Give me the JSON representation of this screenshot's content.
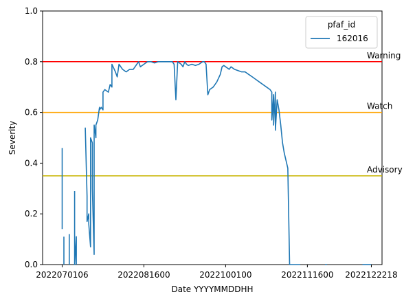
{
  "chart_data": {
    "type": "line",
    "title": "",
    "xlabel": "Date YYYYMMDDHH",
    "ylabel": "Severity",
    "xlim": [
      "2022-06-20",
      "2022-12-28"
    ],
    "ylim": [
      0,
      1.0
    ],
    "x_ticks": [
      {
        "label": "2022070106",
        "date": "2022-07-01"
      },
      {
        "label": "2022081600",
        "date": "2022-08-16"
      },
      {
        "label": "2022100100",
        "date": "2022-10-01"
      },
      {
        "label": "2022111600",
        "date": "2022-11-16"
      },
      {
        "label": "2022122218",
        "date": "2022-12-22"
      }
    ],
    "y_ticks": [
      {
        "label": "0.0",
        "value": 0.0
      },
      {
        "label": "0.2",
        "value": 0.2
      },
      {
        "label": "0.4",
        "value": 0.4
      },
      {
        "label": "0.6",
        "value": 0.6
      },
      {
        "label": "0.8",
        "value": 0.8
      },
      {
        "label": "1.0",
        "value": 1.0
      }
    ],
    "grid": false,
    "legend": {
      "title": "pfaf_id",
      "placement": "top-right",
      "entries": [
        "162016"
      ]
    },
    "thresholds": [
      {
        "label": "Warning",
        "value": 0.8,
        "color": "#ff0000"
      },
      {
        "label": "Watch",
        "value": 0.6,
        "color": "#ffa500"
      },
      {
        "label": "Advisory",
        "value": 0.35,
        "color": "#c8b400"
      }
    ],
    "series": [
      {
        "name": "162016",
        "color": "#1f77b4",
        "segments": [
          [
            [
              "2022-07-01",
              0.14
            ],
            [
              "2022-07-01",
              0.46
            ]
          ],
          [
            [
              "2022-07-02",
              0.11
            ],
            [
              "2022-07-02",
              0.0
            ]
          ],
          [
            [
              "2022-07-05",
              0.12
            ],
            [
              "2022-07-05",
              0.0
            ]
          ],
          [
            [
              "2022-07-08",
              0.29
            ],
            [
              "2022-07-08",
              0.0
            ],
            [
              "2022-07-09",
              0.11
            ],
            [
              "2022-07-09",
              0.0
            ]
          ],
          [
            [
              "2022-07-14",
              0.54
            ],
            [
              "2022-07-15",
              0.27
            ],
            [
              "2022-07-15",
              0.17
            ],
            [
              "2022-07-16",
              0.2
            ],
            [
              "2022-07-16",
              0.16
            ],
            [
              "2022-07-17",
              0.07
            ],
            [
              "2022-07-17",
              0.5
            ],
            [
              "2022-07-18",
              0.48
            ],
            [
              "2022-07-18",
              0.3
            ],
            [
              "2022-07-19",
              0.04
            ],
            [
              "2022-07-19",
              0.55
            ],
            [
              "2022-07-20",
              0.5
            ],
            [
              "2022-07-20",
              0.55
            ],
            [
              "2022-07-21",
              0.57
            ],
            [
              "2022-07-22",
              0.62
            ],
            [
              "2022-07-22",
              0.61
            ],
            [
              "2022-07-23",
              0.62
            ],
            [
              "2022-07-24",
              0.61
            ],
            [
              "2022-07-24",
              0.68
            ],
            [
              "2022-07-25",
              0.69
            ],
            [
              "2022-07-27",
              0.68
            ],
            [
              "2022-07-28",
              0.71
            ],
            [
              "2022-07-29",
              0.7
            ],
            [
              "2022-07-29",
              0.79
            ],
            [
              "2022-07-31",
              0.76
            ],
            [
              "2022-08-01",
              0.74
            ],
            [
              "2022-08-02",
              0.79
            ],
            [
              "2022-08-04",
              0.77
            ],
            [
              "2022-08-06",
              0.76
            ],
            [
              "2022-08-08",
              0.77
            ],
            [
              "2022-08-10",
              0.77
            ],
            [
              "2022-08-12",
              0.79
            ],
            [
              "2022-08-13",
              0.8
            ],
            [
              "2022-08-14",
              0.78
            ],
            [
              "2022-08-16",
              0.79
            ],
            [
              "2022-08-18",
              0.8
            ],
            [
              "2022-08-20",
              0.8
            ],
            [
              "2022-08-22",
              0.795
            ],
            [
              "2022-08-24",
              0.8
            ],
            [
              "2022-08-26",
              0.8
            ],
            [
              "2022-08-28",
              0.8
            ],
            [
              "2022-08-30",
              0.8
            ],
            [
              "2022-09-01",
              0.8
            ],
            [
              "2022-09-02",
              0.79
            ],
            [
              "2022-09-03",
              0.65
            ],
            [
              "2022-09-04",
              0.8
            ],
            [
              "2022-09-05",
              0.795
            ],
            [
              "2022-09-06",
              0.79
            ],
            [
              "2022-09-07",
              0.78
            ],
            [
              "2022-09-08",
              0.8
            ],
            [
              "2022-09-09",
              0.79
            ],
            [
              "2022-09-10",
              0.785
            ],
            [
              "2022-09-12",
              0.79
            ],
            [
              "2022-09-14",
              0.785
            ],
            [
              "2022-09-16",
              0.79
            ],
            [
              "2022-09-18",
              0.8
            ],
            [
              "2022-09-19",
              0.8
            ],
            [
              "2022-09-20",
              0.79
            ],
            [
              "2022-09-21",
              0.67
            ],
            [
              "2022-09-22",
              0.69
            ],
            [
              "2022-09-24",
              0.7
            ],
            [
              "2022-09-26",
              0.72
            ],
            [
              "2022-09-28",
              0.75
            ],
            [
              "2022-09-29",
              0.78
            ],
            [
              "2022-09-30",
              0.785
            ],
            [
              "2022-10-01",
              0.78
            ],
            [
              "2022-10-03",
              0.77
            ],
            [
              "2022-10-04",
              0.78
            ],
            [
              "2022-10-06",
              0.77
            ],
            [
              "2022-10-08",
              0.765
            ],
            [
              "2022-10-10",
              0.76
            ],
            [
              "2022-10-12",
              0.76
            ],
            [
              "2022-10-14",
              0.75
            ],
            [
              "2022-10-16",
              0.74
            ],
            [
              "2022-10-18",
              0.73
            ],
            [
              "2022-10-20",
              0.72
            ],
            [
              "2022-10-22",
              0.71
            ],
            [
              "2022-10-24",
              0.7
            ],
            [
              "2022-10-26",
              0.69
            ],
            [
              "2022-10-27",
              0.68
            ],
            [
              "2022-10-27",
              0.57
            ],
            [
              "2022-10-28",
              0.67
            ],
            [
              "2022-10-28",
              0.55
            ],
            [
              "2022-10-29",
              0.68
            ],
            [
              "2022-10-29",
              0.53
            ],
            [
              "2022-10-30",
              0.65
            ],
            [
              "2022-10-31",
              0.61
            ],
            [
              "2022-11-01",
              0.55
            ],
            [
              "2022-11-02",
              0.48
            ],
            [
              "2022-11-03",
              0.44
            ],
            [
              "2022-11-04",
              0.41
            ],
            [
              "2022-11-05",
              0.38
            ],
            [
              "2022-11-06",
              0.0
            ],
            [
              "2022-11-07",
              0.0
            ],
            [
              "2022-11-12",
              0.0
            ]
          ],
          [
            [
              "2022-11-26",
              0.0
            ],
            [
              "2022-11-27",
              0.0
            ]
          ],
          [
            [
              "2022-12-17",
              0.0
            ],
            [
              "2022-12-22",
              0.0
            ]
          ]
        ]
      }
    ]
  }
}
